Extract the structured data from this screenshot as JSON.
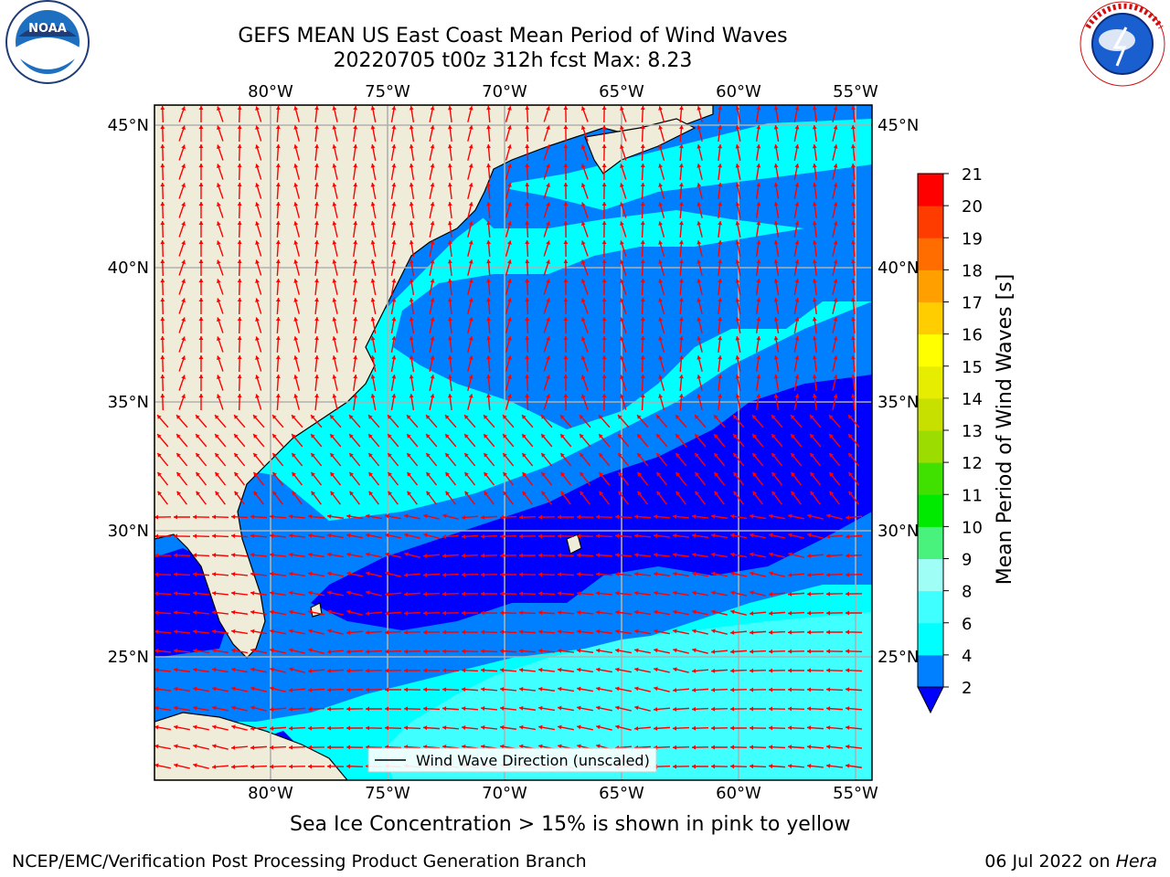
{
  "title_line1": "GEFS MEAN US East Coast Mean Period of Wind Waves",
  "title_line2": "20220705 t00z 312h fcst   Max: 8.23",
  "subtitle": "Sea Ice Concentration > 15% is shown in pink to yellow",
  "footer_left": "NCEP/EMC/Verification Post Processing Product Generation Branch",
  "footer_date": "06 Jul 2022 on ",
  "footer_machine": "Hera",
  "legend_label": "Wind Wave Direction (unscaled)",
  "colorbar": {
    "label": "Mean Period of Wind Waves [s]",
    "ticks": [
      "2",
      "4",
      "6",
      "8",
      "9",
      "10",
      "11",
      "12",
      "13",
      "14",
      "15",
      "16",
      "17",
      "18",
      "19",
      "20",
      "21"
    ],
    "colors": [
      "#0000ff",
      "#0080ff",
      "#00ffff",
      "#40ffff",
      "#9ffff7",
      "#48f27d",
      "#00ea00",
      "#40e000",
      "#9ddc00",
      "#c8e000",
      "#e6ed00",
      "#ffff00",
      "#ffcd00",
      "#ff9f00",
      "#ff6d00",
      "#ff3c00",
      "#ff0000"
    ],
    "extend": "min"
  },
  "map": {
    "lon_labels": [
      "80°W",
      "75°W",
      "70°W",
      "65°W",
      "60°W",
      "55°W"
    ],
    "lat_labels": [
      "45°N",
      "40°N",
      "35°N",
      "30°N",
      "25°N"
    ],
    "land_color": "#efedda",
    "arrow_color": "#ff0000",
    "grid_color": "#b0b0b0"
  },
  "logos": {
    "noaa_text": "NOAA",
    "noaa_ring": "NATIONAL OCEANIC AND ATMOSPHERIC ADMINISTRATION · U.S. DEPARTMENT OF COMMERCE",
    "nws_ring": "NATIONAL WEATHER SERVICE"
  }
}
